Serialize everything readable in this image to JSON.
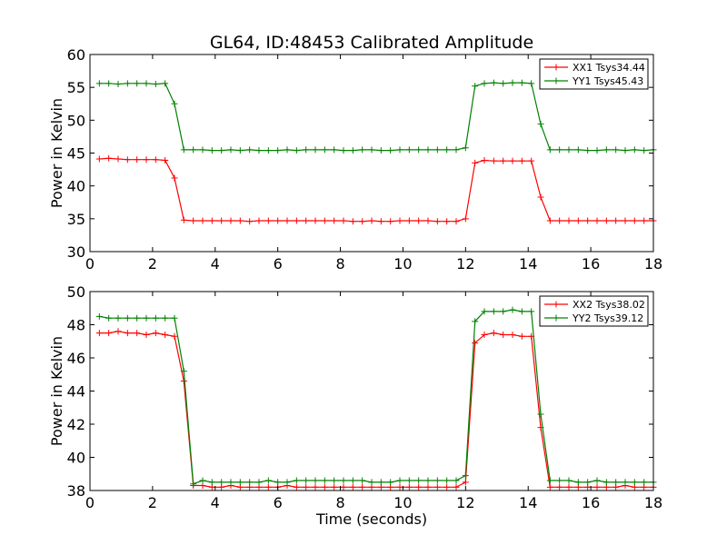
{
  "figure": {
    "title": "GL64, ID:48453 Calibrated Amplitude"
  },
  "chart_data": [
    {
      "type": "line",
      "title": "GL64, ID:48453 Calibrated Amplitude",
      "xlabel": "",
      "ylabel": "Power in Kelvin",
      "xlim": [
        0,
        18
      ],
      "ylim": [
        30,
        60
      ],
      "xticks": [
        0,
        2,
        4,
        6,
        8,
        10,
        12,
        14,
        16,
        18
      ],
      "yticks": [
        30,
        35,
        40,
        45,
        50,
        55,
        60
      ],
      "grid": false,
      "legend_position": "top-right",
      "x": [
        0.3,
        0.6,
        0.9,
        1.2,
        1.5,
        1.8,
        2.1,
        2.4,
        2.7,
        3.0,
        3.3,
        3.6,
        3.9,
        4.2,
        4.5,
        4.8,
        5.1,
        5.4,
        5.7,
        6.0,
        6.3,
        6.6,
        6.9,
        7.2,
        7.5,
        7.8,
        8.1,
        8.4,
        8.7,
        9.0,
        9.3,
        9.6,
        9.9,
        10.2,
        10.5,
        10.8,
        11.1,
        11.4,
        11.7,
        12.0,
        12.3,
        12.6,
        12.9,
        13.2,
        13.5,
        13.8,
        14.1,
        14.4,
        14.7,
        15.0,
        15.3,
        15.6,
        15.9,
        16.2,
        16.5,
        16.8,
        17.1,
        17.4,
        17.7,
        18.0
      ],
      "series": [
        {
          "name": "XX1 Tsys34.44",
          "color": "#ff0000",
          "values": [
            44.1,
            44.2,
            44.1,
            44.0,
            44.0,
            44.0,
            44.0,
            43.9,
            41.2,
            34.8,
            34.7,
            34.7,
            34.7,
            34.7,
            34.7,
            34.7,
            34.6,
            34.7,
            34.7,
            34.7,
            34.7,
            34.7,
            34.7,
            34.7,
            34.7,
            34.7,
            34.7,
            34.6,
            34.6,
            34.7,
            34.6,
            34.6,
            34.7,
            34.7,
            34.7,
            34.7,
            34.6,
            34.6,
            34.6,
            35.0,
            43.5,
            43.9,
            43.8,
            43.8,
            43.8,
            43.8,
            43.8,
            38.3,
            34.7,
            34.7,
            34.7,
            34.7,
            34.7,
            34.7,
            34.7,
            34.7,
            34.7,
            34.7,
            34.7,
            34.7
          ]
        },
        {
          "name": "YY1 Tsys45.43",
          "color": "#008000",
          "values": [
            55.6,
            55.6,
            55.5,
            55.6,
            55.6,
            55.6,
            55.5,
            55.6,
            52.5,
            45.5,
            45.5,
            45.5,
            45.4,
            45.4,
            45.5,
            45.4,
            45.5,
            45.4,
            45.4,
            45.4,
            45.5,
            45.4,
            45.5,
            45.5,
            45.5,
            45.5,
            45.4,
            45.4,
            45.5,
            45.5,
            45.4,
            45.4,
            45.5,
            45.5,
            45.5,
            45.5,
            45.5,
            45.5,
            45.5,
            45.8,
            55.2,
            55.6,
            55.7,
            55.6,
            55.7,
            55.7,
            55.6,
            49.4,
            45.5,
            45.5,
            45.5,
            45.5,
            45.4,
            45.4,
            45.5,
            45.5,
            45.4,
            45.5,
            45.4,
            45.5
          ]
        }
      ]
    },
    {
      "type": "line",
      "title": "",
      "xlabel": "Time (seconds)",
      "ylabel": "Power in Kelvin",
      "xlim": [
        0,
        18
      ],
      "ylim": [
        38,
        50
      ],
      "xticks": [
        0,
        2,
        4,
        6,
        8,
        10,
        12,
        14,
        16,
        18
      ],
      "yticks": [
        38,
        40,
        42,
        44,
        46,
        48,
        50
      ],
      "grid": false,
      "legend_position": "top-right",
      "x": [
        0.3,
        0.6,
        0.9,
        1.2,
        1.5,
        1.8,
        2.1,
        2.4,
        2.7,
        3.0,
        3.3,
        3.6,
        3.9,
        4.2,
        4.5,
        4.8,
        5.1,
        5.4,
        5.7,
        6.0,
        6.3,
        6.6,
        6.9,
        7.2,
        7.5,
        7.8,
        8.1,
        8.4,
        8.7,
        9.0,
        9.3,
        9.6,
        9.9,
        10.2,
        10.5,
        10.8,
        11.1,
        11.4,
        11.7,
        12.0,
        12.3,
        12.6,
        12.9,
        13.2,
        13.5,
        13.8,
        14.1,
        14.4,
        14.7,
        15.0,
        15.3,
        15.6,
        15.9,
        16.2,
        16.5,
        16.8,
        17.1,
        17.4,
        17.7,
        18.0
      ],
      "series": [
        {
          "name": "XX2 Tsys38.02",
          "color": "#ff0000",
          "values": [
            47.5,
            47.5,
            47.6,
            47.5,
            47.5,
            47.4,
            47.5,
            47.4,
            47.3,
            44.6,
            38.3,
            38.3,
            38.2,
            38.2,
            38.3,
            38.2,
            38.2,
            38.2,
            38.2,
            38.2,
            38.3,
            38.2,
            38.2,
            38.2,
            38.2,
            38.2,
            38.2,
            38.2,
            38.2,
            38.2,
            38.2,
            38.2,
            38.2,
            38.2,
            38.2,
            38.2,
            38.2,
            38.2,
            38.2,
            38.5,
            46.9,
            47.4,
            47.5,
            47.4,
            47.4,
            47.3,
            47.3,
            41.8,
            38.2,
            38.2,
            38.2,
            38.2,
            38.2,
            38.2,
            38.2,
            38.2,
            38.3,
            38.2,
            38.2,
            38.2
          ]
        },
        {
          "name": "YY2 Tsys39.12",
          "color": "#008000",
          "values": [
            48.5,
            48.4,
            48.4,
            48.4,
            48.4,
            48.4,
            48.4,
            48.4,
            48.4,
            45.2,
            38.4,
            38.6,
            38.5,
            38.5,
            38.5,
            38.5,
            38.5,
            38.5,
            38.6,
            38.5,
            38.5,
            38.6,
            38.6,
            38.6,
            38.6,
            38.6,
            38.6,
            38.6,
            38.6,
            38.5,
            38.5,
            38.5,
            38.6,
            38.6,
            38.6,
            38.6,
            38.6,
            38.6,
            38.6,
            38.9,
            48.2,
            48.8,
            48.8,
            48.8,
            48.9,
            48.8,
            48.8,
            42.6,
            38.6,
            38.6,
            38.6,
            38.5,
            38.5,
            38.6,
            38.5,
            38.5,
            38.5,
            38.5,
            38.5,
            38.5
          ]
        }
      ]
    }
  ]
}
